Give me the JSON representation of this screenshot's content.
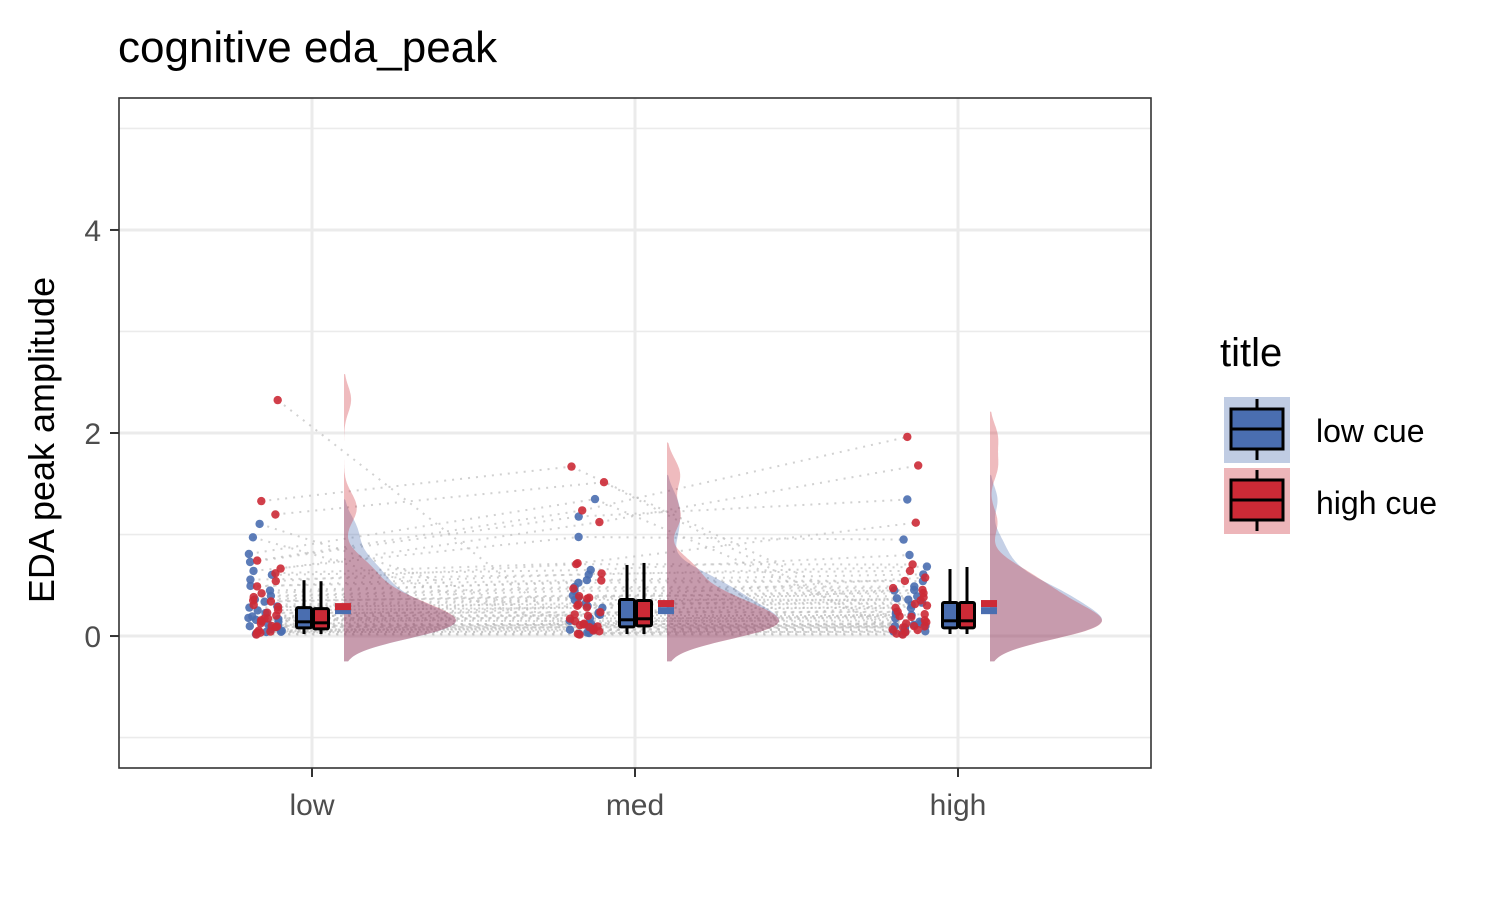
{
  "chart_data": {
    "type": "raincloud",
    "title": "cognitive eda_peak",
    "xlabel": "",
    "ylabel": "EDA peak amplitude",
    "categories": [
      "low",
      "med",
      "high"
    ],
    "ylim": [
      -1.3,
      5.3
    ],
    "yticks": [
      0,
      2,
      4
    ],
    "grid": true,
    "legend": {
      "title": "title",
      "position": "right",
      "entries": [
        "low cue",
        "high cue"
      ]
    },
    "colors": {
      "low cue": "#4a6eb0",
      "high cue": "#cc2a36",
      "lines": "#bdbdbd",
      "grid": "#ebebeb"
    },
    "series": [
      {
        "name": "low cue",
        "points": [
          [
            0.02,
            0.04,
            0.06,
            0.08,
            0.1,
            0.12,
            0.15,
            0.18,
            0.2,
            0.22,
            0.25,
            0.28,
            0.3,
            0.33,
            0.36,
            0.4,
            0.45,
            0.5,
            0.55,
            0.6,
            0.65,
            0.72,
            0.8,
            0.97,
            1.1,
            0.03,
            0.05,
            0.09,
            0.14,
            0.17
          ],
          [
            0.02,
            0.04,
            0.06,
            0.08,
            0.1,
            0.12,
            0.15,
            0.18,
            0.2,
            0.24,
            0.28,
            0.32,
            0.36,
            0.4,
            0.44,
            0.48,
            0.52,
            0.56,
            0.6,
            0.66,
            0.98,
            1.17,
            1.34,
            0.03,
            0.05,
            0.09,
            0.13,
            0.22,
            0.3,
            0.38
          ],
          [
            0.02,
            0.04,
            0.06,
            0.08,
            0.1,
            0.12,
            0.15,
            0.18,
            0.2,
            0.24,
            0.28,
            0.32,
            0.36,
            0.4,
            0.44,
            0.48,
            0.55,
            0.6,
            0.68,
            0.8,
            0.95,
            1.34,
            0.03,
            0.05,
            0.09,
            0.13,
            0.22,
            0.3,
            0.38,
            0.46
          ]
        ],
        "box": [
          {
            "min": 0.02,
            "q1": 0.08,
            "median": 0.14,
            "q3": 0.28,
            "max": 0.55
          },
          {
            "min": 0.02,
            "q1": 0.09,
            "median": 0.16,
            "q3": 0.36,
            "max": 0.7
          },
          {
            "min": 0.02,
            "q1": 0.08,
            "median": 0.15,
            "q3": 0.33,
            "max": 0.66
          }
        ],
        "mean": [
          0.25,
          0.25,
          0.25
        ],
        "density_mode": [
          0.12,
          0.12,
          0.12
        ]
      },
      {
        "name": "high cue",
        "points": [
          [
            0.02,
            0.04,
            0.06,
            0.08,
            0.1,
            0.12,
            0.15,
            0.18,
            0.2,
            0.22,
            0.25,
            0.28,
            0.3,
            0.34,
            0.38,
            0.42,
            0.48,
            0.55,
            0.62,
            0.67,
            0.75,
            1.2,
            1.32,
            2.33,
            0.03,
            0.05,
            0.09,
            0.14,
            0.17,
            0.35
          ],
          [
            0.02,
            0.04,
            0.06,
            0.08,
            0.1,
            0.12,
            0.15,
            0.18,
            0.2,
            0.24,
            0.28,
            0.32,
            0.36,
            0.4,
            0.46,
            0.54,
            0.62,
            0.7,
            0.72,
            1.12,
            1.24,
            1.52,
            1.66,
            0.03,
            0.05,
            0.09,
            0.13,
            0.22,
            0.3,
            0.38
          ],
          [
            0.02,
            0.04,
            0.06,
            0.08,
            0.1,
            0.12,
            0.15,
            0.18,
            0.2,
            0.24,
            0.28,
            0.32,
            0.36,
            0.42,
            0.48,
            0.55,
            0.64,
            0.7,
            1.12,
            1.67,
            1.96,
            0.03,
            0.05,
            0.09,
            0.13,
            0.22,
            0.3,
            0.38,
            0.46,
            0.58
          ]
        ],
        "box": [
          {
            "min": 0.02,
            "q1": 0.07,
            "median": 0.13,
            "q3": 0.27,
            "max": 0.54
          },
          {
            "min": 0.02,
            "q1": 0.1,
            "median": 0.17,
            "q3": 0.35,
            "max": 0.72
          },
          {
            "min": 0.02,
            "q1": 0.08,
            "median": 0.15,
            "q3": 0.33,
            "max": 0.68
          }
        ],
        "mean": [
          0.29,
          0.32,
          0.32
        ],
        "density_mode": [
          0.1,
          0.12,
          0.12
        ]
      }
    ]
  }
}
